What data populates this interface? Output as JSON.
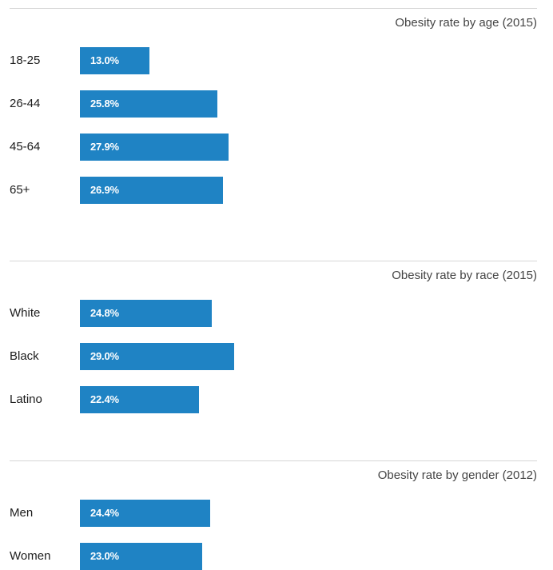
{
  "colors": {
    "bar": "#1f83c4",
    "rule": "#d6d6d6"
  },
  "chart_data": [
    {
      "type": "bar",
      "orientation": "horizontal",
      "title": "Obesity rate by age (2015)",
      "categories": [
        "18-25",
        "26-44",
        "45-64",
        "65+"
      ],
      "values": [
        13.0,
        25.8,
        27.9,
        26.9
      ],
      "labels": [
        "13.0%",
        "25.8%",
        "27.9%",
        "26.9%"
      ],
      "xlim": [
        0,
        30
      ],
      "grid": false
    },
    {
      "type": "bar",
      "orientation": "horizontal",
      "title": "Obesity rate by race (2015)",
      "categories": [
        "White",
        "Black",
        "Latino"
      ],
      "values": [
        24.8,
        29.0,
        22.4
      ],
      "labels": [
        "24.8%",
        "29.0%",
        "22.4%"
      ],
      "xlim": [
        0,
        30
      ],
      "grid": false
    },
    {
      "type": "bar",
      "orientation": "horizontal",
      "title": "Obesity rate by gender (2012)",
      "categories": [
        "Men",
        "Women"
      ],
      "values": [
        24.4,
        23.0
      ],
      "labels": [
        "24.4%",
        "23.0%"
      ],
      "xlim": [
        0,
        30
      ],
      "grid": false
    }
  ]
}
